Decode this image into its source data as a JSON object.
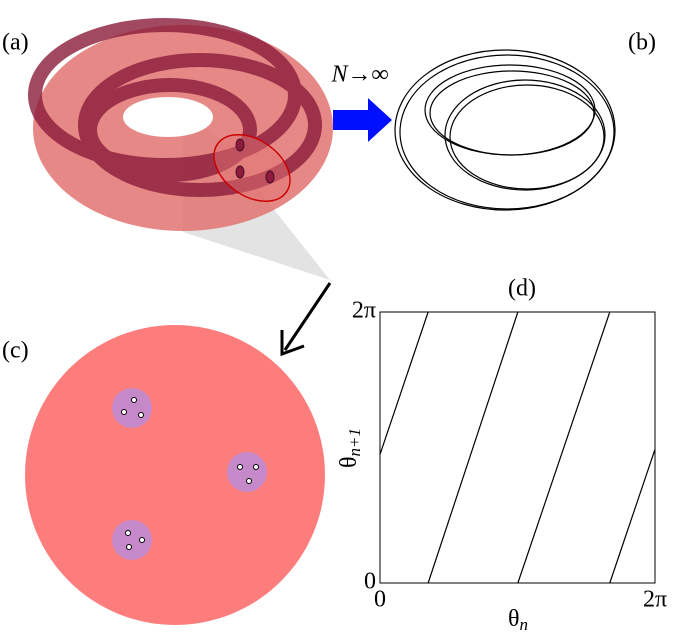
{
  "panel_labels": [
    "(a)",
    "(b)",
    "(c)"
  ],
  "annotation": "N→∞",
  "chart_data": {
    "type": "line",
    "title": "(d)",
    "x_label": {
      "symbol": "θ",
      "subscript": "n"
    },
    "y_label": {
      "symbol": "θ",
      "subscript": "n+1"
    },
    "xlim": [
      0,
      6.283
    ],
    "ylim": [
      0,
      6.283
    ],
    "xticks": [
      0,
      {
        "value": 6.283,
        "label": "2π"
      }
    ],
    "yticks": [
      0,
      {
        "value": 6.283,
        "label": "2π"
      }
    ],
    "x": [
      0,
      1.1,
      null,
      1.1,
      3.15,
      null,
      3.15,
      5.25,
      null,
      5.25,
      6.283
    ],
    "series": [
      {
        "color": "#000000",
        "values": [
          2.98,
          6.283,
          null,
          0,
          6.283,
          null,
          0,
          6.283,
          null,
          0,
          3.1
        ]
      }
    ]
  }
}
